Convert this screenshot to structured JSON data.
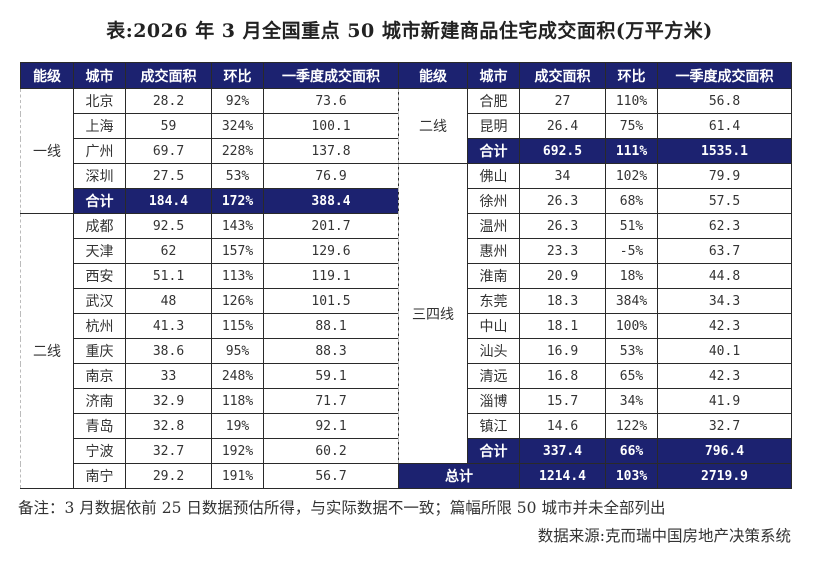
{
  "title": "表:2026 年 3 月全国重点 50 城市新建商品住宅成交面积(万平方米)",
  "headers": [
    "能级",
    "城市",
    "成交面积",
    "环比",
    "一季度成交面积"
  ],
  "left": {
    "tier1": {
      "label": "一线",
      "rows": [
        {
          "city": "北京",
          "area": "28.2",
          "mom": "92%",
          "q1": "73.6"
        },
        {
          "city": "上海",
          "area": "59",
          "mom": "324%",
          "q1": "100.1"
        },
        {
          "city": "广州",
          "area": "69.7",
          "mom": "228%",
          "q1": "137.8"
        },
        {
          "city": "深圳",
          "area": "27.5",
          "mom": "53%",
          "q1": "76.9"
        }
      ],
      "subtotal": {
        "city": "合计",
        "area": "184.4",
        "mom": "172%",
        "q1": "388.4"
      }
    },
    "tier2": {
      "label": "二线",
      "rows": [
        {
          "city": "成都",
          "area": "92.5",
          "mom": "143%",
          "q1": "201.7"
        },
        {
          "city": "天津",
          "area": "62",
          "mom": "157%",
          "q1": "129.6"
        },
        {
          "city": "西安",
          "area": "51.1",
          "mom": "113%",
          "q1": "119.1"
        },
        {
          "city": "武汉",
          "area": "48",
          "mom": "126%",
          "q1": "101.5"
        },
        {
          "city": "杭州",
          "area": "41.3",
          "mom": "115%",
          "q1": "88.1"
        },
        {
          "city": "重庆",
          "area": "38.6",
          "mom": "95%",
          "q1": "88.3"
        },
        {
          "city": "南京",
          "area": "33",
          "mom": "248%",
          "q1": "59.1"
        },
        {
          "city": "济南",
          "area": "32.9",
          "mom": "118%",
          "q1": "71.7"
        },
        {
          "city": "青岛",
          "area": "32.8",
          "mom": "19%",
          "q1": "92.1"
        },
        {
          "city": "宁波",
          "area": "32.7",
          "mom": "192%",
          "q1": "60.2"
        },
        {
          "city": "南宁",
          "area": "29.2",
          "mom": "191%",
          "q1": "56.7"
        }
      ]
    }
  },
  "right": {
    "tier2cont": {
      "label": "二线",
      "rows": [
        {
          "city": "合肥",
          "area": "27",
          "mom": "110%",
          "q1": "56.8"
        },
        {
          "city": "昆明",
          "area": "26.4",
          "mom": "75%",
          "q1": "61.4"
        }
      ],
      "subtotal": {
        "city": "合计",
        "area": "692.5",
        "mom": "111%",
        "q1": "1535.1"
      }
    },
    "tier34": {
      "label": "三四线",
      "rows": [
        {
          "city": "佛山",
          "area": "34",
          "mom": "102%",
          "q1": "79.9"
        },
        {
          "city": "徐州",
          "area": "26.3",
          "mom": "68%",
          "q1": "57.5"
        },
        {
          "city": "温州",
          "area": "26.3",
          "mom": "51%",
          "q1": "62.3"
        },
        {
          "city": "惠州",
          "area": "23.3",
          "mom": "-5%",
          "q1": "63.7"
        },
        {
          "city": "淮南",
          "area": "20.9",
          "mom": "18%",
          "q1": "44.8"
        },
        {
          "city": "东莞",
          "area": "18.3",
          "mom": "384%",
          "q1": "34.3"
        },
        {
          "city": "中山",
          "area": "18.1",
          "mom": "100%",
          "q1": "42.3"
        },
        {
          "city": "汕头",
          "area": "16.9",
          "mom": "53%",
          "q1": "40.1"
        },
        {
          "city": "清远",
          "area": "16.8",
          "mom": "65%",
          "q1": "42.3"
        },
        {
          "city": "淄博",
          "area": "15.7",
          "mom": "34%",
          "q1": "41.9"
        },
        {
          "city": "镇江",
          "area": "14.6",
          "mom": "122%",
          "q1": "32.7"
        }
      ],
      "subtotal": {
        "city": "合计",
        "area": "337.4",
        "mom": "66%",
        "q1": "796.4"
      }
    },
    "grand_total": {
      "label": "总计",
      "area": "1214.4",
      "mom": "103%",
      "q1": "2719.9"
    }
  },
  "footer": {
    "note": "备注：3 月数据依前 25 日数据预估所得，与实际数据不一致；篇幅所限 50 城市并未全部列出",
    "source": "数据来源:克而瑞中国房地产决策系统"
  },
  "colors": {
    "header_bg": "#1c2270",
    "header_text": "#ffffff",
    "border": "#2a2a2a"
  }
}
